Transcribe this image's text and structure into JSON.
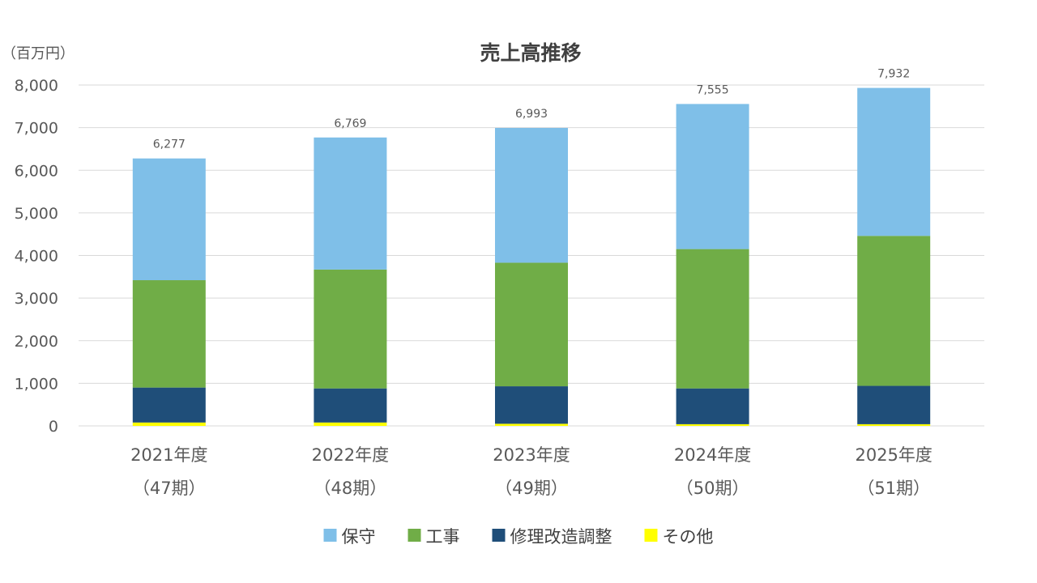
{
  "chart_data": {
    "type": "bar",
    "stacked": true,
    "title": "売上高推移",
    "unit_label": "（百万円）",
    "categories": [
      [
        "2021年度",
        "（47期）"
      ],
      [
        "2022年度",
        "（48期）"
      ],
      [
        "2023年度",
        "（49期）"
      ],
      [
        "2024年度",
        "（50期）"
      ],
      [
        "2025年度",
        "（51期）"
      ]
    ],
    "totals": [
      "6,277",
      "6,769",
      "6,993",
      "7,555",
      "7,932"
    ],
    "total_values": [
      6277,
      6769,
      6993,
      7555,
      7932
    ],
    "series": [
      {
        "name": "その他",
        "color": "#ffff00",
        "values": [
          80,
          80,
          50,
          40,
          40
        ]
      },
      {
        "name": "修理改造調整",
        "color": "#1f4e79",
        "values": [
          820,
          800,
          880,
          840,
          900
        ]
      },
      {
        "name": "工事",
        "color": "#70ad47",
        "values": [
          2520,
          2790,
          2900,
          3270,
          3520
        ]
      },
      {
        "name": "保守",
        "color": "#7fbfe8",
        "values": [
          2857,
          3099,
          3163,
          3405,
          3472
        ]
      }
    ],
    "legend_order": [
      3,
      2,
      1,
      0
    ],
    "y_ticks": [
      "0",
      "1,000",
      "2,000",
      "3,000",
      "4,000",
      "5,000",
      "6,000",
      "7,000",
      "8,000"
    ],
    "ylim": [
      0,
      8000
    ],
    "grid": true,
    "legend_position": "bottom"
  }
}
